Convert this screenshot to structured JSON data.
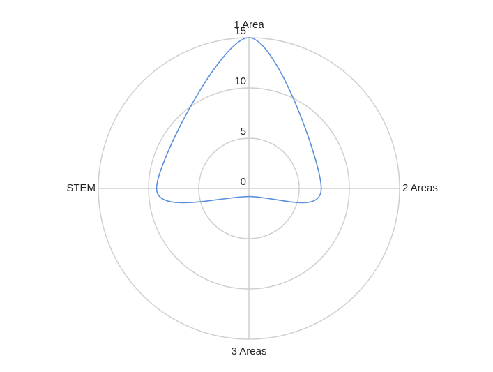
{
  "chart_data": {
    "type": "radar",
    "categories": [
      "1 Area",
      "2 Areas",
      "3 Areas",
      "STEM"
    ],
    "values": [
      15,
      7.2,
      0.8,
      9.2
    ],
    "color": "#5b8fdb",
    "rlim": [
      0,
      15
    ],
    "rticks": [
      0,
      5,
      10,
      15
    ],
    "grid": true
  }
}
